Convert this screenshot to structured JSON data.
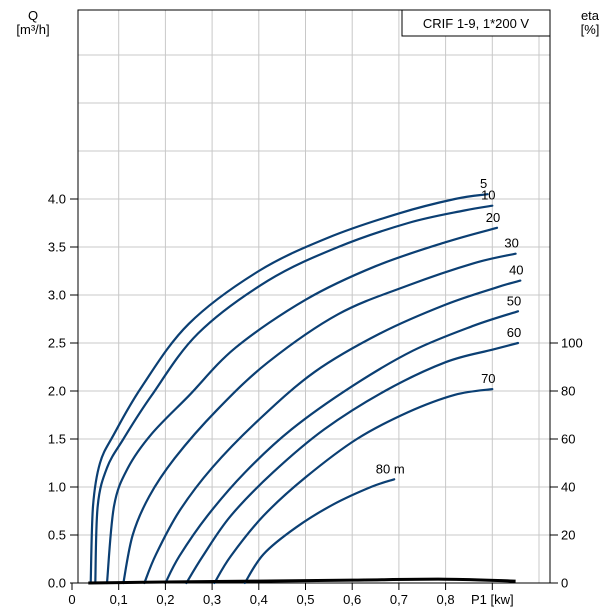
{
  "chart_data": {
    "type": "line",
    "title": "CRIF 1-9, 1*200 V",
    "ylabel_left": [
      "Q",
      "[m³/h]"
    ],
    "ylabel_right": [
      "eta",
      "[%]"
    ],
    "xlabel": "P1 [kw]",
    "xlim": [
      0,
      1.0
    ],
    "ylim": [
      0,
      6.0
    ],
    "eta_lim": [
      0,
      100
    ],
    "x_ticks": [
      0,
      0.1,
      0.2,
      0.3,
      0.4,
      0.5,
      0.6,
      0.7,
      0.8,
      0.9
    ],
    "x_tick_labels": [
      "0",
      "0,1",
      "0,2",
      "0,3",
      "0,4",
      "0,5",
      "0,6",
      "0,7",
      "0,8",
      "P1 [kw]"
    ],
    "y_ticks": [
      0,
      0.5,
      1.0,
      1.5,
      2.0,
      2.5,
      3.0,
      3.5,
      4.0
    ],
    "y_tick_labels": [
      "0.0",
      "0.5",
      "1.0",
      "1.5",
      "2.0",
      "2.5",
      "3.0",
      "3.5",
      "4.0"
    ],
    "eta_ticks": [
      0,
      20,
      40,
      60,
      80,
      100
    ],
    "eta_tick_labels": [
      "0",
      "20",
      "40",
      "60",
      "80",
      "100"
    ],
    "grid": true,
    "series": [
      {
        "name": "5",
        "x": [
          0.04,
          0.045,
          0.06,
          0.09,
          0.15,
          0.25,
          0.4,
          0.55,
          0.7,
          0.82,
          0.89
        ],
        "y": [
          0,
          0.8,
          1.25,
          1.55,
          2.05,
          2.7,
          3.25,
          3.6,
          3.85,
          4.0,
          4.05
        ]
      },
      {
        "name": "10",
        "x": [
          0.05,
          0.055,
          0.075,
          0.11,
          0.17,
          0.27,
          0.42,
          0.57,
          0.72,
          0.84,
          0.9
        ],
        "y": [
          0,
          0.8,
          1.2,
          1.5,
          1.95,
          2.6,
          3.15,
          3.5,
          3.75,
          3.88,
          3.93
        ]
      },
      {
        "name": "20",
        "x": [
          0.075,
          0.09,
          0.12,
          0.17,
          0.25,
          0.35,
          0.5,
          0.65,
          0.8,
          0.91
        ],
        "y": [
          0,
          0.8,
          1.2,
          1.55,
          1.95,
          2.45,
          2.95,
          3.3,
          3.55,
          3.7
        ]
      },
      {
        "name": "30",
        "x": [
          0.11,
          0.13,
          0.165,
          0.22,
          0.31,
          0.42,
          0.57,
          0.72,
          0.86,
          0.95
        ],
        "y": [
          0,
          0.5,
          0.9,
          1.3,
          1.8,
          2.3,
          2.8,
          3.1,
          3.33,
          3.43
        ]
      },
      {
        "name": "40",
        "x": [
          0.155,
          0.18,
          0.23,
          0.3,
          0.4,
          0.52,
          0.66,
          0.8,
          0.91,
          0.96
        ],
        "y": [
          0,
          0.3,
          0.75,
          1.2,
          1.7,
          2.2,
          2.6,
          2.9,
          3.08,
          3.15
        ]
      },
      {
        "name": "50",
        "x": [
          0.2,
          0.23,
          0.29,
          0.37,
          0.47,
          0.6,
          0.73,
          0.86,
          0.955
        ],
        "y": [
          0,
          0.28,
          0.7,
          1.15,
          1.6,
          2.05,
          2.42,
          2.68,
          2.83
        ]
      },
      {
        "name": "60",
        "x": [
          0.245,
          0.28,
          0.34,
          0.43,
          0.54,
          0.67,
          0.8,
          0.9,
          0.955
        ],
        "y": [
          0,
          0.28,
          0.7,
          1.15,
          1.6,
          2.0,
          2.3,
          2.43,
          2.5
        ]
      },
      {
        "name": "70",
        "x": [
          0.305,
          0.34,
          0.41,
          0.5,
          0.61,
          0.72,
          0.82,
          0.9
        ],
        "y": [
          0,
          0.28,
          0.7,
          1.1,
          1.5,
          1.78,
          1.96,
          2.02
        ]
      },
      {
        "name": "80 m",
        "x": [
          0.37,
          0.41,
          0.48,
          0.56,
          0.64,
          0.69
        ],
        "y": [
          0,
          0.3,
          0.58,
          0.82,
          1.0,
          1.08
        ]
      }
    ],
    "power_curve": {
      "x": [
        0.035,
        0.2,
        0.4,
        0.6,
        0.8,
        0.95
      ],
      "y": [
        0.0,
        0.01,
        0.02,
        0.03,
        0.04,
        0.02
      ]
    },
    "colors": {
      "curve": "#0b3f73",
      "grid": "#c8c8c8",
      "axis": "#000000"
    }
  }
}
